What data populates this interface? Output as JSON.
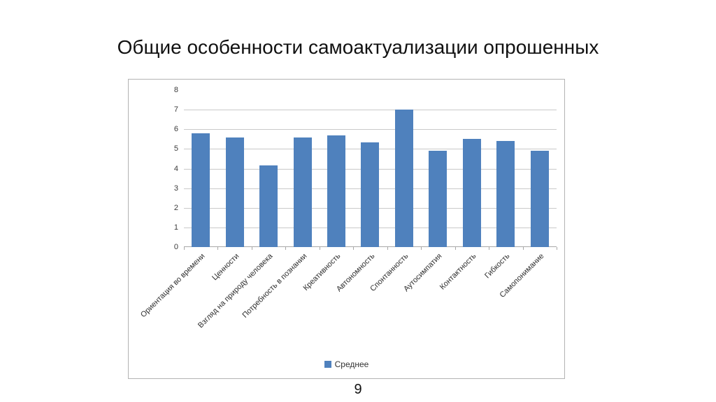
{
  "slide": {
    "title": "Общие особенности самоактуализации опрошенных",
    "page_number": "9"
  },
  "chart_data": {
    "type": "bar",
    "title": "",
    "categories": [
      "Ориентация во времени",
      "Ценности",
      "Взгляд на природу человека",
      "Потребность в познании",
      "Креативность",
      "Автономность",
      "Спонтанность",
      "Аутосимпатия",
      "Контактность",
      "Гибкость",
      "Самопонимание"
    ],
    "series": [
      {
        "name": "Среднее",
        "values": [
          5.8,
          5.6,
          4.15,
          5.6,
          5.7,
          5.35,
          7,
          4.9,
          5.5,
          5.4,
          4.9
        ]
      }
    ],
    "xlabel": "",
    "ylabel": "",
    "ylim": [
      0,
      8
    ],
    "ytick_interval": 1,
    "grid": true,
    "legend_position": "bottom",
    "bar_color": "#4f81bd"
  }
}
